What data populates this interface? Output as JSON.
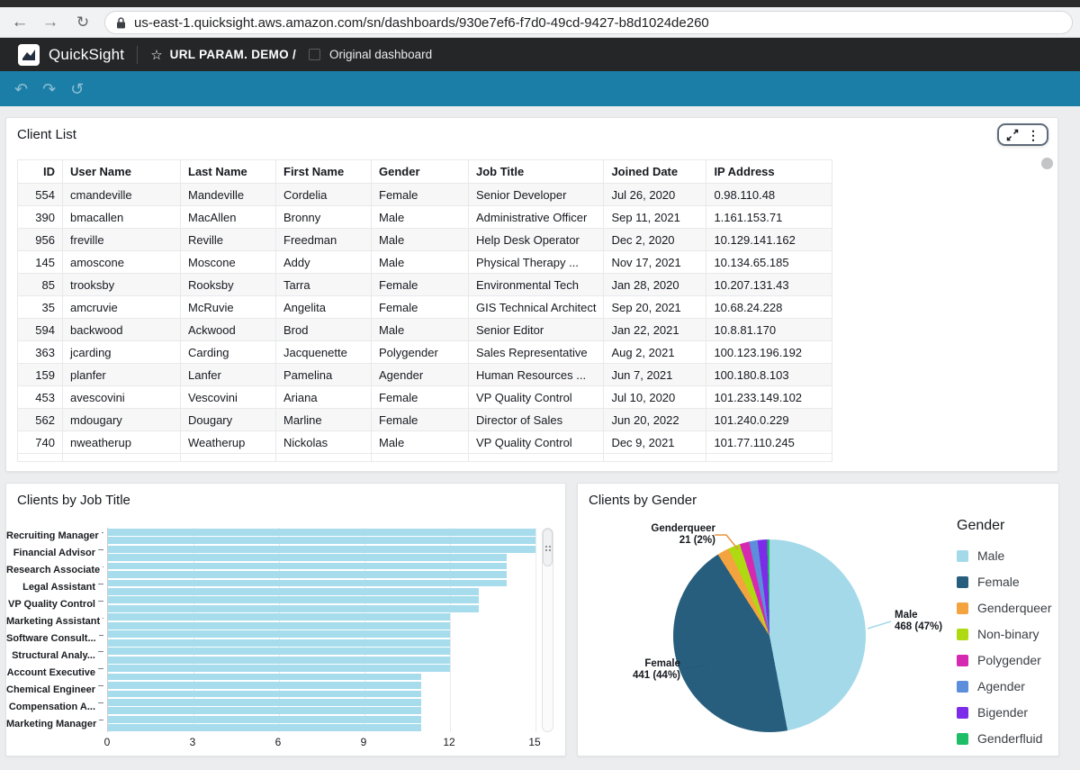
{
  "browser": {
    "url": "us-east-1.quicksight.aws.amazon.com/sn/dashboards/930e7ef6-f7d0-49cd-9427-b8d1024de260"
  },
  "app_header": {
    "app_name": "QuickSight",
    "breadcrumb": "URL PARAM. DEMO /",
    "dashboard_name": "Original dashboard"
  },
  "client_list": {
    "title": "Client List",
    "columns": [
      "ID",
      "User Name",
      "Last Name",
      "First Name",
      "Gender",
      "Job Title",
      "Joined Date",
      "IP Address"
    ],
    "rows": [
      [
        "554",
        "cmandeville",
        "Mandeville",
        "Cordelia",
        "Female",
        "Senior Developer",
        "Jul 26, 2020",
        "0.98.110.48"
      ],
      [
        "390",
        "bmacallen",
        "MacAllen",
        "Bronny",
        "Male",
        "Administrative Officer",
        "Sep 11, 2021",
        "1.161.153.71"
      ],
      [
        "956",
        "freville",
        "Reville",
        "Freedman",
        "Male",
        "Help Desk Operator",
        "Dec 2, 2020",
        "10.129.141.162"
      ],
      [
        "145",
        "amoscone",
        "Moscone",
        "Addy",
        "Male",
        "Physical Therapy ...",
        "Nov 17, 2021",
        "10.134.65.185"
      ],
      [
        "85",
        "trooksby",
        "Rooksby",
        "Tarra",
        "Female",
        "Environmental Tech",
        "Jan 28, 2020",
        "10.207.131.43"
      ],
      [
        "35",
        "amcruvie",
        "McRuvie",
        "Angelita",
        "Female",
        "GIS Technical Architect",
        "Sep 20, 2021",
        "10.68.24.228"
      ],
      [
        "594",
        "backwood",
        "Ackwood",
        "Brod",
        "Male",
        "Senior Editor",
        "Jan 22, 2021",
        "10.8.81.170"
      ],
      [
        "363",
        "jcarding",
        "Carding",
        "Jacquenette",
        "Polygender",
        "Sales Representative",
        "Aug 2, 2021",
        "100.123.196.192"
      ],
      [
        "159",
        "planfer",
        "Lanfer",
        "Pamelina",
        "Agender",
        "Human Resources ...",
        "Jun 7, 2021",
        "100.180.8.103"
      ],
      [
        "453",
        "avescovini",
        "Vescovini",
        "Ariana",
        "Female",
        "VP Quality Control",
        "Jul 10, 2020",
        "101.233.149.102"
      ],
      [
        "562",
        "mdougary",
        "Dougary",
        "Marline",
        "Female",
        "Director of Sales",
        "Jun 20, 2022",
        "101.240.0.229"
      ],
      [
        "740",
        "nweatherup",
        "Weatherup",
        "Nickolas",
        "Male",
        "VP Quality Control",
        "Dec 9, 2021",
        "101.77.110.245"
      ]
    ]
  },
  "chart_data": [
    {
      "type": "bar",
      "title": "Clients by Job Title",
      "orientation": "horizontal",
      "xlim": [
        0,
        16
      ],
      "x_ticks": [
        0,
        3,
        6,
        9,
        12,
        15
      ],
      "grid": true,
      "visible_labels": [
        "Recruiting Manager",
        "Financial Advisor",
        "Research Associate",
        "Legal Assistant",
        "VP Quality Control",
        "Marketing Assistant",
        "Software Consult...",
        "Structural Analy...",
        "Account Executive",
        "Chemical Engineer",
        "Compensation A...",
        "Marketing Manager"
      ],
      "bar_values": [
        15,
        15,
        15,
        14,
        14,
        14,
        14,
        13,
        13,
        13,
        12,
        12,
        12,
        12,
        12,
        12,
        12,
        11,
        11,
        11,
        11,
        11,
        11,
        11
      ],
      "bar_color": "#A6DCEC"
    },
    {
      "type": "pie",
      "title": "Clients by Gender",
      "legend_title": "Gender",
      "legend_position": "right",
      "slices": [
        {
          "label": "Male",
          "value": 468,
          "pct": 47,
          "color": "#A4D9EA"
        },
        {
          "label": "Female",
          "value": 441,
          "pct": 44,
          "color": "#275E7D"
        },
        {
          "label": "Genderqueer",
          "value": 21,
          "pct": 2,
          "color": "#F3A43F"
        },
        {
          "label": "Non-binary",
          "pct": 2,
          "color": "#AFD911"
        },
        {
          "label": "Polygender",
          "pct": 1.6,
          "color": "#D629B2"
        },
        {
          "label": "Agender",
          "pct": 1.4,
          "color": "#5C8EDC"
        },
        {
          "label": "Bigender",
          "pct": 1.6,
          "color": "#7C2BE8"
        },
        {
          "label": "Genderfluid",
          "pct": 0.4,
          "color": "#1EBE66"
        }
      ],
      "annotations": [
        {
          "lines": [
            "Genderqueer",
            "21 (2%)"
          ]
        },
        {
          "lines": [
            "Male",
            "468 (47%)"
          ]
        },
        {
          "lines": [
            "Female",
            "441 (44%)"
          ]
        }
      ]
    }
  ],
  "colors": {
    "toolbar_teal": "#1B7EA7",
    "header_dark": "#242628",
    "page_bg": "#ECEDEF",
    "bar_blue": "#A6DCEC"
  }
}
